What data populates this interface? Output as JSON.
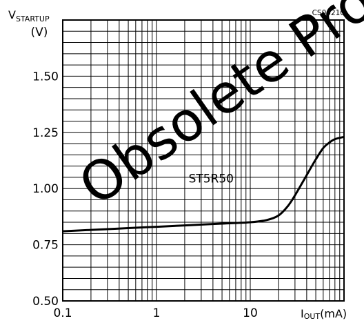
{
  "chart_data": {
    "type": "line",
    "xscale": "log",
    "xlim": [
      0.1,
      100
    ],
    "ylim": [
      0.5,
      1.75
    ],
    "grid": true,
    "ylabel_main": "V",
    "ylabel_sub": "STARTUP",
    "ylabel_unit": "(V)",
    "xlabel_main": "I",
    "xlabel_sub": "OUT",
    "xlabel_unit": "(mA)",
    "figure_code": "CS00210",
    "x_ticks": [
      {
        "value": 0.1,
        "label": "0.1"
      },
      {
        "value": 1,
        "label": "1"
      },
      {
        "value": 10,
        "label": "10"
      }
    ],
    "y_ticks": [
      {
        "value": 0.5,
        "label": "0.50"
      },
      {
        "value": 0.75,
        "label": "0.75"
      },
      {
        "value": 1.0,
        "label": "1.00"
      },
      {
        "value": 1.25,
        "label": "1.25"
      },
      {
        "value": 1.5,
        "label": "1.50"
      }
    ],
    "series": [
      {
        "name": "ST5R50",
        "x": [
          0.1,
          0.2,
          0.5,
          1,
          2,
          5,
          10,
          15,
          20,
          25,
          30,
          40,
          50,
          60,
          70,
          80,
          100
        ],
        "y": [
          0.81,
          0.816,
          0.824,
          0.83,
          0.836,
          0.844,
          0.85,
          0.86,
          0.88,
          0.92,
          0.97,
          1.06,
          1.13,
          1.18,
          1.205,
          1.22,
          1.23
        ]
      }
    ],
    "annotation": {
      "text": "ST5R50",
      "x": 2.2,
      "y": 1.045
    },
    "watermark": "Obsolete Product(s)"
  }
}
